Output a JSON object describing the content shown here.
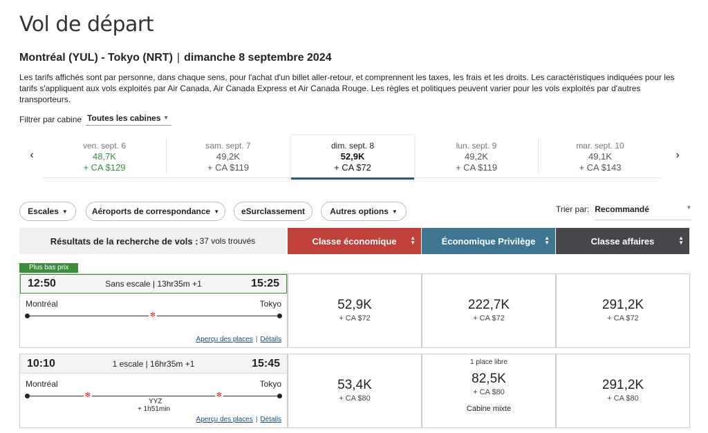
{
  "page": {
    "title": "Vol de départ",
    "route": "Montréal (YUL) - Tokyo (NRT)",
    "route_separator": "|",
    "date": "dimanche 8 septembre 2024",
    "info": "Les tarifs affichés sont par personne, dans chaque sens, pour l'achat d'un billet aller-retour, et comprennent les taxes, les frais et les droits. Les caractéristiques indiquées pour les tarifs s'appliquent aux vols exploités par Air Canada, Air Canada Express et Air Canada Rouge. Les règles et politiques peuvent varier pour les vols exploités par d'autres transporteurs."
  },
  "filter": {
    "label": "Filtrer par cabine",
    "value": "Toutes les cabines"
  },
  "dates": [
    {
      "day": "ven. sept. 6",
      "points": "48,7K",
      "cash": "+ CA $129"
    },
    {
      "day": "sam. sept. 7",
      "points": "49,2K",
      "cash": "+ CA $119"
    },
    {
      "day": "dim. sept. 8",
      "points": "52,9K",
      "cash": "+ CA $72"
    },
    {
      "day": "lun. sept. 9",
      "points": "49,2K",
      "cash": "+ CA $119"
    },
    {
      "day": "mar. sept. 10",
      "points": "49,1K",
      "cash": "+ CA $143"
    }
  ],
  "filters": {
    "stops": "Escales",
    "airports": "Aéroports de correspondance",
    "upgrade": "eSurclassement",
    "other": "Autres options"
  },
  "sort": {
    "label": "Trier par:",
    "value": "Recommandé"
  },
  "results": {
    "label": "Résultats de la recherche de vols :",
    "count": "37 vols trouvés"
  },
  "cabins": {
    "economy": "Classe économique",
    "premium": "Économique Privilège",
    "business": "Classe affaires"
  },
  "colors": {
    "economy": "#c0403b",
    "premium": "#3e7590",
    "business": "#45474a",
    "best": "#3c8c3c"
  },
  "badge": "Plus bas prix",
  "flights": [
    {
      "depart": "12:50",
      "arrive": "15:25",
      "stops": "Sans escale | 13hr35m +1",
      "from": "Montréal",
      "to": "Tokyo",
      "seats_link": "Aperçu des places",
      "details_link": "Détails",
      "link_sep": "|",
      "fares": [
        {
          "points": "52,9K",
          "cash": "+ CA $72"
        },
        {
          "points": "222,7K",
          "cash": "+ CA $72"
        },
        {
          "points": "291,2K",
          "cash": "+ CA $72"
        }
      ]
    },
    {
      "depart": "10:10",
      "arrive": "15:45",
      "stops": "1 escale | 16hr35m +1",
      "from": "Montréal",
      "to": "Tokyo",
      "stop_code": "YYZ",
      "layover": "+ 1h51min",
      "seats_link": "Aperçu des places",
      "details_link": "Détails",
      "link_sep": "|",
      "fares": [
        {
          "points": "53,4K",
          "cash": "+ CA $80"
        },
        {
          "note": "1 place libre",
          "points": "82,5K",
          "cash": "+ CA $80",
          "mixed": "Cabine mixte"
        },
        {
          "points": "291,2K",
          "cash": "+ CA $80"
        }
      ]
    }
  ]
}
